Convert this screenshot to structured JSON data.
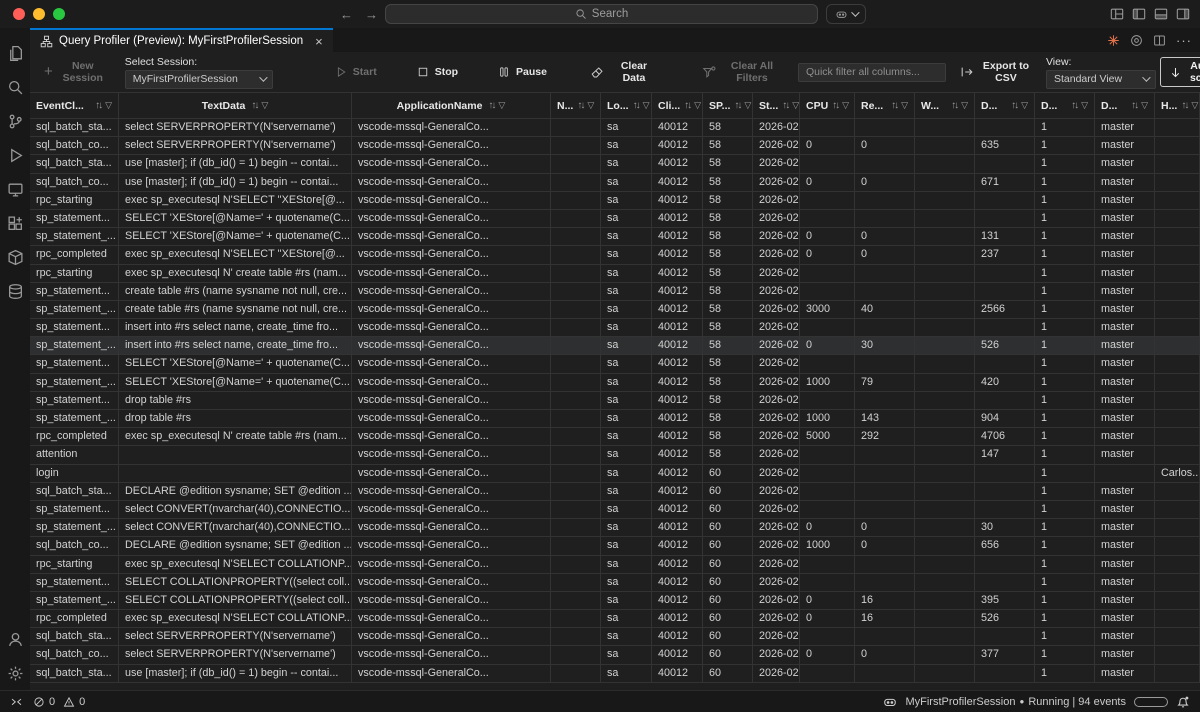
{
  "window": {
    "search_placeholder": "Search",
    "back_arrow": "←",
    "forward_arrow": "→"
  },
  "tab": {
    "title": "Query Profiler (Preview): MyFirstProfilerSession",
    "close": "×"
  },
  "tabbar_more": "···",
  "toolbar": {
    "new_session": "New Session",
    "select_session_label": "Select Session:",
    "session_value": "MyFirstProfilerSession",
    "start": "Start",
    "stop": "Stop",
    "pause": "Pause",
    "clear_data": "Clear Data",
    "clear_all_filters": "Clear All Filters",
    "quick_filter_placeholder": "Quick filter all columns...",
    "export_csv": "Export to CSV",
    "view_label": "View:",
    "view_value": "Standard View",
    "autoscroll": "Auto-scroll"
  },
  "activity_bar": {
    "top": [
      "explorer",
      "search",
      "source-control",
      "run-debug",
      "remote-explorer",
      "extensions",
      "package",
      "database"
    ],
    "bottom": [
      "account",
      "settings"
    ]
  },
  "grid": {
    "sort_glyph": "↑↓",
    "filter_glyph": "▽",
    "highlighted_row_index": 12,
    "columns": [
      {
        "id": "event_class",
        "label": "EventCl..."
      },
      {
        "id": "text_data",
        "label": "TextData"
      },
      {
        "id": "application_name",
        "label": "ApplicationName"
      },
      {
        "id": "nt_user_name",
        "label": "N..."
      },
      {
        "id": "login_name",
        "label": "Lo..."
      },
      {
        "id": "client_process_id",
        "label": "Cli..."
      },
      {
        "id": "spid",
        "label": "SP..."
      },
      {
        "id": "start_time",
        "label": "St..."
      },
      {
        "id": "cpu",
        "label": "CPU"
      },
      {
        "id": "reads",
        "label": "Re..."
      },
      {
        "id": "writes",
        "label": "W..."
      },
      {
        "id": "duration",
        "label": "D..."
      },
      {
        "id": "database_id",
        "label": "D..."
      },
      {
        "id": "database_name",
        "label": "D..."
      },
      {
        "id": "host_name",
        "label": "H..."
      }
    ],
    "rows": [
      [
        "sql_batch_sta...",
        "select SERVERPROPERTY(N'servername')",
        "vscode-mssql-GeneralCo...",
        "",
        "sa",
        "40012",
        "58",
        "2026-02...",
        "",
        "",
        "",
        "",
        "1",
        "master",
        ""
      ],
      [
        "sql_batch_co...",
        "select SERVERPROPERTY(N'servername')",
        "vscode-mssql-GeneralCo...",
        "",
        "sa",
        "40012",
        "58",
        "2026-02...",
        "0",
        "0",
        "",
        "635",
        "1",
        "master",
        ""
      ],
      [
        "sql_batch_sta...",
        "use [master]; if (db_id() = 1) begin -- contai...",
        "vscode-mssql-GeneralCo...",
        "",
        "sa",
        "40012",
        "58",
        "2026-02...",
        "",
        "",
        "",
        "",
        "1",
        "master",
        ""
      ],
      [
        "sql_batch_co...",
        "use [master]; if (db_id() = 1) begin -- contai...",
        "vscode-mssql-GeneralCo...",
        "",
        "sa",
        "40012",
        "58",
        "2026-02...",
        "0",
        "0",
        "",
        "671",
        "1",
        "master",
        ""
      ],
      [
        "rpc_starting",
        "exec sp_executesql N'SELECT ''XEStore[@...",
        "vscode-mssql-GeneralCo...",
        "",
        "sa",
        "40012",
        "58",
        "2026-02...",
        "",
        "",
        "",
        "",
        "1",
        "master",
        ""
      ],
      [
        "sp_statement...",
        "SELECT 'XEStore[@Name=' + quotename(C...",
        "vscode-mssql-GeneralCo...",
        "",
        "sa",
        "40012",
        "58",
        "2026-02...",
        "",
        "",
        "",
        "",
        "1",
        "master",
        ""
      ],
      [
        "sp_statement_...",
        "SELECT 'XEStore[@Name=' + quotename(C...",
        "vscode-mssql-GeneralCo...",
        "",
        "sa",
        "40012",
        "58",
        "2026-02...",
        "0",
        "0",
        "",
        "131",
        "1",
        "master",
        ""
      ],
      [
        "rpc_completed",
        "exec sp_executesql N'SELECT ''XEStore[@...",
        "vscode-mssql-GeneralCo...",
        "",
        "sa",
        "40012",
        "58",
        "2026-02...",
        "0",
        "0",
        "",
        "237",
        "1",
        "master",
        ""
      ],
      [
        "rpc_starting",
        "exec sp_executesql N' create table #rs (nam...",
        "vscode-mssql-GeneralCo...",
        "",
        "sa",
        "40012",
        "58",
        "2026-02...",
        "",
        "",
        "",
        "",
        "1",
        "master",
        ""
      ],
      [
        "sp_statement...",
        "create table #rs (name sysname not null, cre...",
        "vscode-mssql-GeneralCo...",
        "",
        "sa",
        "40012",
        "58",
        "2026-02...",
        "",
        "",
        "",
        "",
        "1",
        "master",
        ""
      ],
      [
        "sp_statement_...",
        "create table #rs (name sysname not null, cre...",
        "vscode-mssql-GeneralCo...",
        "",
        "sa",
        "40012",
        "58",
        "2026-02...",
        "3000",
        "40",
        "",
        "2566",
        "1",
        "master",
        ""
      ],
      [
        "sp_statement...",
        "insert into #rs select name, create_time fro...",
        "vscode-mssql-GeneralCo...",
        "",
        "sa",
        "40012",
        "58",
        "2026-02...",
        "",
        "",
        "",
        "",
        "1",
        "master",
        ""
      ],
      [
        "sp_statement_...",
        "insert into #rs select name, create_time fro...",
        "vscode-mssql-GeneralCo...",
        "",
        "sa",
        "40012",
        "58",
        "2026-02...",
        "0",
        "30",
        "",
        "526",
        "1",
        "master",
        ""
      ],
      [
        "sp_statement...",
        "SELECT 'XEStore[@Name=' + quotename(C...",
        "vscode-mssql-GeneralCo...",
        "",
        "sa",
        "40012",
        "58",
        "2026-02...",
        "",
        "",
        "",
        "",
        "1",
        "master",
        ""
      ],
      [
        "sp_statement_...",
        "SELECT 'XEStore[@Name=' + quotename(C...",
        "vscode-mssql-GeneralCo...",
        "",
        "sa",
        "40012",
        "58",
        "2026-02...",
        "1000",
        "79",
        "",
        "420",
        "1",
        "master",
        ""
      ],
      [
        "sp_statement...",
        "drop table #rs",
        "vscode-mssql-GeneralCo...",
        "",
        "sa",
        "40012",
        "58",
        "2026-02...",
        "",
        "",
        "",
        "",
        "1",
        "master",
        ""
      ],
      [
        "sp_statement_...",
        "drop table #rs",
        "vscode-mssql-GeneralCo...",
        "",
        "sa",
        "40012",
        "58",
        "2026-02...",
        "1000",
        "143",
        "",
        "904",
        "1",
        "master",
        ""
      ],
      [
        "rpc_completed",
        "exec sp_executesql N' create table #rs (nam...",
        "vscode-mssql-GeneralCo...",
        "",
        "sa",
        "40012",
        "58",
        "2026-02...",
        "5000",
        "292",
        "",
        "4706",
        "1",
        "master",
        ""
      ],
      [
        "attention",
        "",
        "vscode-mssql-GeneralCo...",
        "",
        "sa",
        "40012",
        "58",
        "2026-02...",
        "",
        "",
        "",
        "147",
        "1",
        "master",
        ""
      ],
      [
        "login",
        "",
        "vscode-mssql-GeneralCo...",
        "",
        "sa",
        "40012",
        "60",
        "2026-02...",
        "",
        "",
        "",
        "",
        "1",
        "",
        "Carlos..."
      ],
      [
        "sql_batch_sta...",
        "DECLARE @edition sysname; SET @edition ...",
        "vscode-mssql-GeneralCo...",
        "",
        "sa",
        "40012",
        "60",
        "2026-02...",
        "",
        "",
        "",
        "",
        "1",
        "master",
        ""
      ],
      [
        "sp_statement...",
        "select CONVERT(nvarchar(40),CONNECTIO...",
        "vscode-mssql-GeneralCo...",
        "",
        "sa",
        "40012",
        "60",
        "2026-02...",
        "",
        "",
        "",
        "",
        "1",
        "master",
        ""
      ],
      [
        "sp_statement_...",
        "select CONVERT(nvarchar(40),CONNECTIO...",
        "vscode-mssql-GeneralCo...",
        "",
        "sa",
        "40012",
        "60",
        "2026-02...",
        "0",
        "0",
        "",
        "30",
        "1",
        "master",
        ""
      ],
      [
        "sql_batch_co...",
        "DECLARE @edition sysname; SET @edition ...",
        "vscode-mssql-GeneralCo...",
        "",
        "sa",
        "40012",
        "60",
        "2026-02...",
        "1000",
        "0",
        "",
        "656",
        "1",
        "master",
        ""
      ],
      [
        "rpc_starting",
        "exec sp_executesql N'SELECT COLLATIONP...",
        "vscode-mssql-GeneralCo...",
        "",
        "sa",
        "40012",
        "60",
        "2026-02...",
        "",
        "",
        "",
        "",
        "1",
        "master",
        ""
      ],
      [
        "sp_statement...",
        "SELECT COLLATIONPROPERTY((select coll...",
        "vscode-mssql-GeneralCo...",
        "",
        "sa",
        "40012",
        "60",
        "2026-02...",
        "",
        "",
        "",
        "",
        "1",
        "master",
        ""
      ],
      [
        "sp_statement_...",
        "SELECT COLLATIONPROPERTY((select coll...",
        "vscode-mssql-GeneralCo...",
        "",
        "sa",
        "40012",
        "60",
        "2026-02...",
        "0",
        "16",
        "",
        "395",
        "1",
        "master",
        ""
      ],
      [
        "rpc_completed",
        "exec sp_executesql N'SELECT COLLATIONP...",
        "vscode-mssql-GeneralCo...",
        "",
        "sa",
        "40012",
        "60",
        "2026-02...",
        "0",
        "16",
        "",
        "526",
        "1",
        "master",
        ""
      ],
      [
        "sql_batch_sta...",
        "select SERVERPROPERTY(N'servername')",
        "vscode-mssql-GeneralCo...",
        "",
        "sa",
        "40012",
        "60",
        "2026-02...",
        "",
        "",
        "",
        "",
        "1",
        "master",
        ""
      ],
      [
        "sql_batch_co...",
        "select SERVERPROPERTY(N'servername')",
        "vscode-mssql-GeneralCo...",
        "",
        "sa",
        "40012",
        "60",
        "2026-02...",
        "0",
        "0",
        "",
        "377",
        "1",
        "master",
        ""
      ],
      [
        "sql_batch_sta...",
        "use [master]; if (db_id() = 1) begin -- contai...",
        "vscode-mssql-GeneralCo...",
        "",
        "sa",
        "40012",
        "60",
        "2026-02...",
        "",
        "",
        "",
        "",
        "1",
        "master",
        ""
      ]
    ]
  },
  "statusbar": {
    "errors": "0",
    "warnings": "0",
    "session_name": "MyFirstProfilerSession",
    "status_dot": "●",
    "status_text": "Running | 94 events"
  }
}
